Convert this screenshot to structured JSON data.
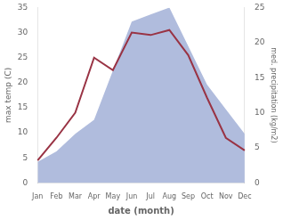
{
  "chart_data": {
    "type": "line",
    "xlabel": "date (month)",
    "ylabel": "max temp (C)",
    "y2label": "med. precipitation (kg/m2)",
    "categories": [
      "Jan",
      "Feb",
      "Mar",
      "Apr",
      "May",
      "Jun",
      "Jul",
      "Aug",
      "Sep",
      "Oct",
      "Nov",
      "Dec"
    ],
    "series": [
      {
        "type": "area",
        "color": "#b0bcdd",
        "axis": "y2",
        "values": [
          3.0,
          4.5,
          7.0,
          9.0,
          16.0,
          23.0,
          24.0,
          25.0,
          19.5,
          14.0,
          10.5,
          7.0
        ]
      },
      {
        "type": "line",
        "color": "#993344",
        "values": [
          4.5,
          9.0,
          14.0,
          25.0,
          22.5,
          30.0,
          29.5,
          30.5,
          25.5,
          17.0,
          9.0,
          6.5
        ]
      }
    ],
    "ylim": [
      0,
      35
    ],
    "yticks": [
      0,
      5,
      10,
      15,
      20,
      25,
      30,
      35
    ],
    "y2lim": [
      0,
      25
    ],
    "y2ticks": [
      0,
      5,
      10,
      15,
      20,
      25
    ],
    "grid": false
  }
}
